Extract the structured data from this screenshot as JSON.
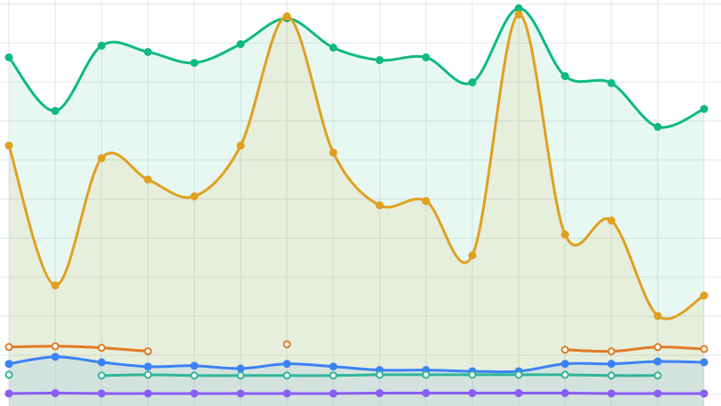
{
  "chart_data": {
    "type": "line",
    "grid": true,
    "categories": [
      null,
      null,
      null,
      null,
      null,
      null,
      null,
      null,
      null,
      null,
      null,
      null,
      null,
      null,
      null,
      null
    ],
    "ylim": [
      -0.3,
      10.1
    ],
    "yticks": [
      0,
      1,
      2,
      3,
      4,
      5,
      6,
      7,
      8,
      9,
      10
    ],
    "series": [
      {
        "color": "#10b981",
        "fill": true,
        "hollow": false,
        "values": [
          8.63,
          7.26,
          8.93,
          8.77,
          8.49,
          8.97,
          9.63,
          8.88,
          8.56,
          8.63,
          7.99,
          9.89,
          8.15,
          7.97,
          6.85,
          7.31
        ]
      },
      {
        "color": "#e0a020",
        "fill": true,
        "hollow": false,
        "values": [
          6.37,
          2.79,
          6.05,
          5.5,
          5.07,
          6.37,
          9.68,
          6.19,
          4.84,
          4.95,
          3.56,
          9.73,
          4.09,
          4.45,
          2.01,
          2.53
        ]
      },
      {
        "color": "#e07b24",
        "fill": false,
        "hollow": true,
        "values": [
          1.21,
          1.23,
          1.19,
          1.1,
          null,
          null,
          1.28,
          null,
          null,
          null,
          null,
          null,
          1.14,
          1.1,
          1.21,
          1.16
        ]
      },
      {
        "color": "#3b82f6",
        "fill": true,
        "hollow": false,
        "values": [
          0.78,
          0.96,
          0.82,
          0.71,
          0.73,
          0.66,
          0.78,
          0.71,
          0.62,
          0.62,
          0.59,
          0.59,
          0.78,
          0.78,
          0.84,
          0.82
        ]
      },
      {
        "color": "#2fb59a",
        "fill": false,
        "hollow": true,
        "values": [
          0.5,
          null,
          0.48,
          0.5,
          0.48,
          0.48,
          0.48,
          0.48,
          0.5,
          0.5,
          0.5,
          0.5,
          0.5,
          0.48,
          0.48,
          null
        ]
      },
      {
        "color": "#8b5cf6",
        "fill": false,
        "hollow": false,
        "values": [
          0.02,
          0.03,
          0.02,
          0.02,
          0.02,
          0.02,
          0.02,
          0.02,
          0.03,
          0.03,
          0.03,
          0.03,
          0.03,
          0.02,
          0.02,
          0.02
        ]
      }
    ]
  }
}
